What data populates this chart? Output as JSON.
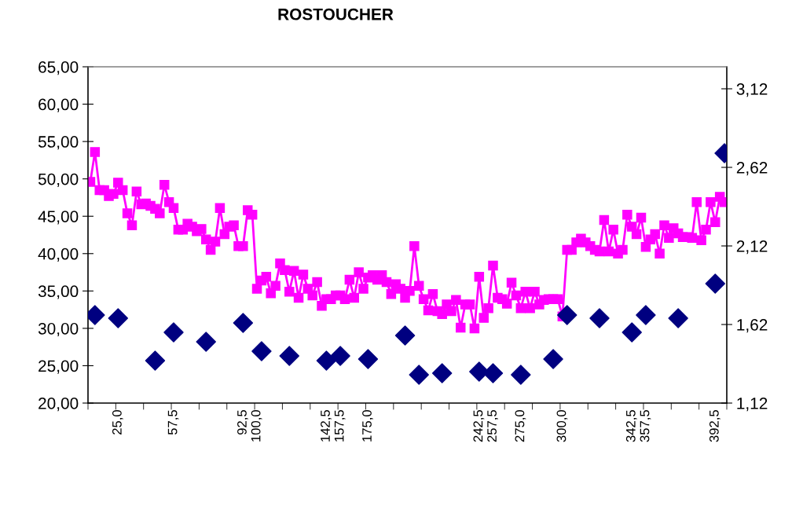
{
  "chart_data": {
    "type": "line",
    "title": "ROSTOUCHER",
    "categories": [
      null,
      null,
      null,
      null,
      null,
      null,
      "25,0",
      null,
      null,
      null,
      null,
      null,
      null,
      null,
      null,
      null,
      null,
      null,
      "57,5",
      null,
      null,
      null,
      null,
      null,
      null,
      null,
      null,
      null,
      null,
      null,
      null,
      null,
      null,
      "92,5",
      null,
      null,
      "100,0",
      null,
      null,
      null,
      null,
      null,
      null,
      null,
      null,
      null,
      null,
      null,
      null,
      null,
      null,
      "142,5",
      null,
      null,
      "157,5",
      null,
      null,
      null,
      null,
      null,
      "175,0",
      null,
      null,
      null,
      null,
      null,
      null,
      null,
      null,
      null,
      null,
      null,
      null,
      null,
      null,
      null,
      null,
      null,
      null,
      null,
      null,
      null,
      null,
      null,
      "242,5",
      null,
      null,
      "257,5",
      null,
      null,
      null,
      null,
      null,
      "275,0",
      null,
      null,
      null,
      null,
      null,
      null,
      null,
      null,
      "300,0",
      null,
      null,
      null,
      null,
      null,
      null,
      null,
      null,
      null,
      null,
      null,
      null,
      null,
      null,
      "342,5",
      null,
      null,
      "357,5",
      null,
      null,
      null,
      null,
      null,
      null,
      null,
      null,
      null,
      null,
      null,
      null,
      null,
      null,
      "392,5",
      null,
      null
    ],
    "series": [
      {
        "marker": "square",
        "color": "#ff00ff",
        "values": [
          49.6,
          53.6,
          48.5,
          48.5,
          47.7,
          48.0,
          49.5,
          48.5,
          45.4,
          43.8,
          48.3,
          46.6,
          46.7,
          46.4,
          46.0,
          45.4,
          49.2,
          46.9,
          46.1,
          43.2,
          43.2,
          44.0,
          43.6,
          43.0,
          43.3,
          41.9,
          40.5,
          41.6,
          46.1,
          42.6,
          43.6,
          43.8,
          41.0,
          41.0,
          45.8,
          45.2,
          35.3,
          36.4,
          36.9,
          34.7,
          35.7,
          38.7,
          37.8,
          34.9,
          37.7,
          34.1,
          37.2,
          35.3,
          34.4,
          36.2,
          33.0,
          33.9,
          33.9,
          34.4,
          34.4,
          33.9,
          36.5,
          34.1,
          37.5,
          35.3,
          36.8,
          37.1,
          36.5,
          37.1,
          36.2,
          34.6,
          35.9,
          35.3,
          34.1,
          35.0,
          41.0,
          35.7,
          33.9,
          32.4,
          34.6,
          32.3,
          31.9,
          33.2,
          32.3,
          33.8,
          30.1,
          33.2,
          33.2,
          30.0,
          36.9,
          31.4,
          32.7,
          38.4,
          34.1,
          33.9,
          33.3,
          36.1,
          34.4,
          32.7,
          34.9,
          32.7,
          34.9,
          33.2,
          33.8,
          33.9,
          33.9,
          33.9,
          31.6,
          40.5,
          40.5,
          41.5,
          42.0,
          41.5,
          41.0,
          40.5,
          40.3,
          44.5,
          40.3,
          43.2,
          40.0,
          40.5,
          45.2,
          43.6,
          42.6,
          44.8,
          40.9,
          41.9,
          42.6,
          40.0,
          43.8,
          42.1,
          43.4,
          42.7,
          42.2,
          42.2,
          42.1,
          46.9,
          41.8,
          43.2,
          46.9,
          44.2,
          47.6,
          46.9
        ]
      },
      {
        "type": "scatter",
        "marker": "diamond",
        "axis": "y2",
        "color": "#000080",
        "values": [
          null,
          1.68,
          null,
          null,
          null,
          null,
          1.66,
          null,
          null,
          null,
          null,
          null,
          null,
          null,
          1.39,
          null,
          null,
          null,
          1.57,
          null,
          null,
          null,
          null,
          null,
          null,
          1.51,
          null,
          null,
          null,
          null,
          null,
          null,
          null,
          1.63,
          null,
          null,
          null,
          1.45,
          null,
          null,
          null,
          null,
          null,
          1.42,
          null,
          null,
          null,
          null,
          null,
          null,
          null,
          1.39,
          null,
          null,
          1.42,
          null,
          null,
          null,
          null,
          null,
          1.4,
          null,
          null,
          null,
          null,
          null,
          null,
          null,
          1.55,
          null,
          null,
          1.3,
          null,
          null,
          null,
          null,
          1.31,
          null,
          null,
          null,
          null,
          null,
          null,
          null,
          1.32,
          null,
          null,
          1.31,
          null,
          null,
          null,
          null,
          null,
          1.3,
          null,
          null,
          null,
          null,
          null,
          null,
          1.4,
          null,
          null,
          1.68,
          null,
          null,
          null,
          null,
          null,
          null,
          1.66,
          null,
          null,
          null,
          null,
          null,
          null,
          1.57,
          null,
          null,
          1.68,
          null,
          null,
          null,
          null,
          null,
          null,
          1.66,
          null,
          null,
          null,
          null,
          null,
          null,
          null,
          1.88,
          null,
          2.71
        ]
      }
    ],
    "ylim": [
      20,
      65
    ],
    "yticks": [
      {
        "value": 20,
        "label": "20,00"
      },
      {
        "value": 25,
        "label": "25,00"
      },
      {
        "value": 30,
        "label": "30,00"
      },
      {
        "value": 35,
        "label": "35,00"
      },
      {
        "value": 40,
        "label": "40,00"
      },
      {
        "value": 45,
        "label": "45,00"
      },
      {
        "value": 50,
        "label": "50,00"
      },
      {
        "value": 55,
        "label": "55,00"
      },
      {
        "value": 60,
        "label": "60,00"
      },
      {
        "value": 65,
        "label": "65,00"
      }
    ],
    "y2lim": [
      1.12,
      3.26
    ],
    "y2ticks": [
      {
        "value": 1.12,
        "label": "1,12"
      },
      {
        "value": 1.62,
        "label": "1,62"
      },
      {
        "value": 2.12,
        "label": "2,12"
      },
      {
        "value": 2.62,
        "label": "2,62"
      },
      {
        "value": 3.12,
        "label": "3,12"
      }
    ],
    "grid": false,
    "legend": false
  }
}
